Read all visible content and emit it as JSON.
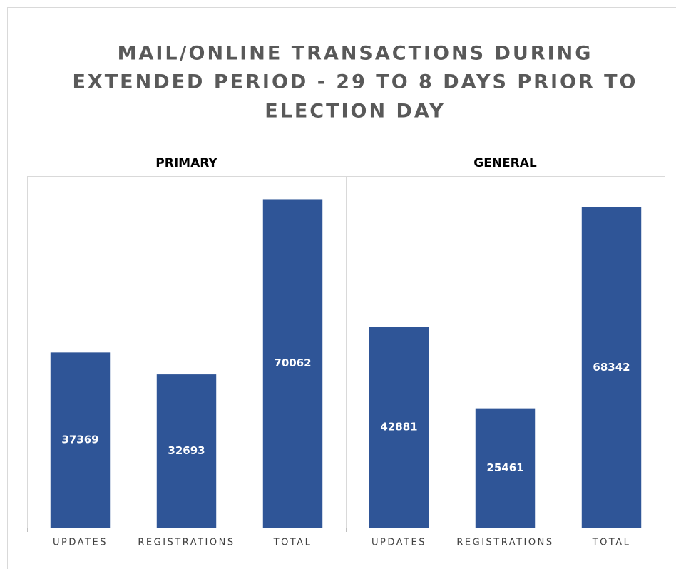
{
  "title": [
    "MAIL/ONLINE TRANSACTIONS DURING",
    "EXTENDED PERIOD - 29 TO 8 DAYS PRIOR TO",
    "ELECTION DAY"
  ],
  "chart_data": [
    {
      "type": "bar",
      "title": "PRIMARY",
      "categories": [
        "UPDATES",
        "REGISTRATIONS",
        "TOTAL"
      ],
      "values": [
        37369,
        32693,
        70062
      ],
      "color": "#2f5597",
      "ylim": [
        0,
        75000
      ]
    },
    {
      "type": "bar",
      "title": "GENERAL",
      "categories": [
        "UPDATES",
        "REGISTRATIONS",
        "TOTAL"
      ],
      "values": [
        42881,
        25461,
        68342
      ],
      "color": "#2f5597",
      "ylim": [
        0,
        75000
      ]
    }
  ]
}
